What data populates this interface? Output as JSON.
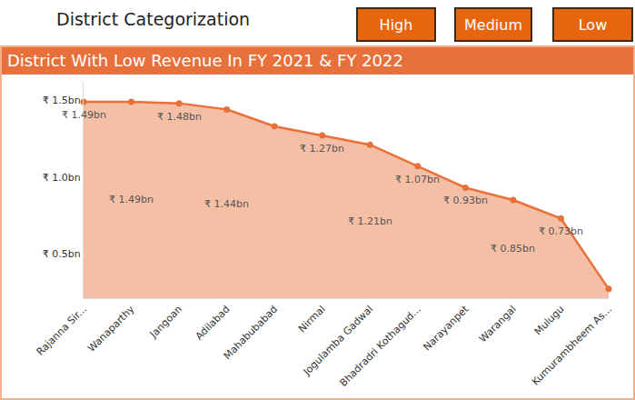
{
  "header": {
    "title": "District Categorization",
    "buttons": [
      "High",
      "Medium",
      "Low"
    ]
  },
  "chart_data": {
    "type": "area",
    "title": "District With Low Revenue In FY 2021 & FY 2022",
    "categories": [
      "Rajanna Sir...",
      "Wanaparthy",
      "Jangoan",
      "Adilabad",
      "Mahabubabad",
      "Nirmal",
      "Jogulamba Gadwal",
      "Bhadradri Kothagud...",
      "Narayanpet",
      "Warangal",
      "Mulugu",
      "Kumurambheem As..."
    ],
    "values": [
      1.49,
      1.49,
      1.48,
      1.44,
      1.33,
      1.27,
      1.21,
      1.07,
      0.93,
      0.85,
      0.73,
      0.27
    ],
    "value_labels": [
      "₹ 1.49bn",
      "₹ 1.49bn",
      "₹ 1.48bn",
      "₹ 1.44bn",
      null,
      "₹ 1.27bn",
      "₹ 1.21bn",
      "₹ 1.07bn",
      "₹ 0.93bn",
      "₹ 0.85bn",
      "₹ 0.73bn",
      null
    ],
    "color": "#e8703a",
    "ylim": [
      0.21,
      1.62
    ],
    "yticks": [
      {
        "value": 0.5,
        "label": "₹ 0.5bn"
      },
      {
        "value": 1.0,
        "label": "₹ 1.0bn"
      },
      {
        "value": 1.5,
        "label": "₹ 1.5bn"
      }
    ],
    "data_labels": true,
    "grid": false
  }
}
